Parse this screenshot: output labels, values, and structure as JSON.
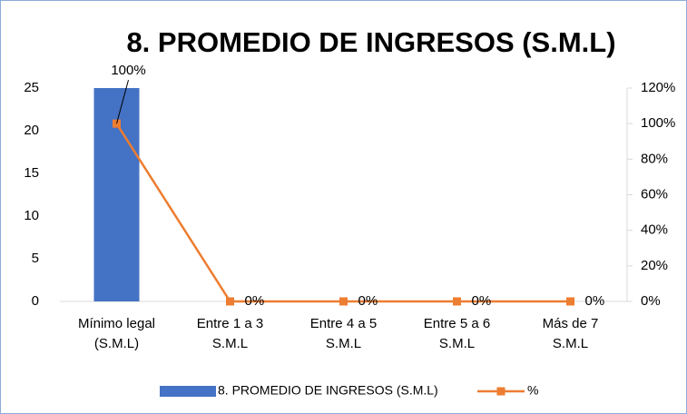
{
  "chart_data": {
    "type": "bar+line",
    "title": "8. PROMEDIO DE INGRESOS (S.M.L)",
    "categories": [
      "Mínimo legal (S.M.L)",
      "Entre 1 a 3 S.M.L",
      "Entre 4 a 5 S.M.L",
      "Entre 5 a 6 S.M.L",
      "Más de 7 S.M.L"
    ],
    "series": [
      {
        "name": "8. PROMEDIO DE INGRESOS (S.M.L)",
        "type": "bar",
        "color": "#4472c4",
        "values": [
          25,
          0,
          0,
          0,
          0
        ]
      },
      {
        "name": "%",
        "type": "line",
        "axis": "y2",
        "color": "#ed7d31",
        "values": [
          100,
          0,
          0,
          0,
          0
        ],
        "value_labels": [
          "100%",
          "0%",
          "0%",
          "0%",
          "0%"
        ]
      }
    ],
    "ylim": [
      0,
      25
    ],
    "yticks": [
      0,
      5,
      10,
      15,
      20,
      25
    ],
    "y2lim": [
      0,
      120
    ],
    "y2ticks": [
      {
        "value": 0,
        "label": "0%"
      },
      {
        "value": 20,
        "label": "20%"
      },
      {
        "value": 40,
        "label": "40%"
      },
      {
        "value": 60,
        "label": "60%"
      },
      {
        "value": 80,
        "label": "80%"
      },
      {
        "value": 100,
        "label": "100%"
      },
      {
        "value": 120,
        "label": "120%"
      }
    ],
    "grid": false,
    "legend": "bottom"
  }
}
